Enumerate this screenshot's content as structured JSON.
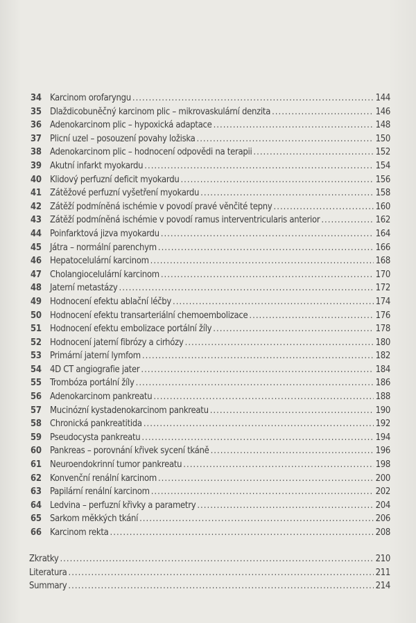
{
  "chapters": [
    {
      "num": "34",
      "title": "Karcinom orofaryngu",
      "page": "144"
    },
    {
      "num": "35",
      "title": "Dlaždicobuněčný karcinom plic – mikrovaskulární denzita",
      "page": "146"
    },
    {
      "num": "36",
      "title": "Adenokarcinom plic – hypoxická adaptace",
      "page": "148"
    },
    {
      "num": "37",
      "title": "Plicní uzel – posouzení povahy ložiska",
      "page": "150"
    },
    {
      "num": "38",
      "title": "Adenokarcinom plic – hodnocení odpovědi na terapii",
      "page": "152"
    },
    {
      "num": "39",
      "title": "Akutní infarkt myokardu",
      "page": "154"
    },
    {
      "num": "40",
      "title": "Klidový perfuzní deficit myokardu",
      "page": "156"
    },
    {
      "num": "41",
      "title": "Zátěžové perfuzní vyšetření myokardu",
      "page": "158"
    },
    {
      "num": "42",
      "title": "Zátěží podmíněná ischémie v povodí pravé věnčité tepny",
      "page": "160"
    },
    {
      "num": "43",
      "title": "Zátěží podmíněná ischémie v povodí ramus interventricularis anterior",
      "page": "162"
    },
    {
      "num": "44",
      "title": "Poinfarktová jizva myokardu",
      "page": "164"
    },
    {
      "num": "45",
      "title": "Játra – normální parenchym",
      "page": "166"
    },
    {
      "num": "46",
      "title": "Hepatocelulární karcinom",
      "page": "168"
    },
    {
      "num": "47",
      "title": "Cholangiocelulární karcinom",
      "page": "170"
    },
    {
      "num": "48",
      "title": "Jaterní metastázy",
      "page": "172"
    },
    {
      "num": "49",
      "title": "Hodnocení efektu ablační léčby",
      "page": "174"
    },
    {
      "num": "50",
      "title": "Hodnocení efektu transarteriální chemoembolizace",
      "page": "176"
    },
    {
      "num": "51",
      "title": "Hodnocení efektu embolizace portální žíly",
      "page": "178"
    },
    {
      "num": "52",
      "title": "Hodnocení jaterní fibrózy a cirhózy",
      "page": "180"
    },
    {
      "num": "53",
      "title": "Primární jaterní lymfom",
      "page": "182"
    },
    {
      "num": "54",
      "title": "4D CT angiografie jater",
      "page": "184"
    },
    {
      "num": "55",
      "title": "Trombóza portální žíly",
      "page": "186"
    },
    {
      "num": "56",
      "title": "Adenokarcinom pankreatu",
      "page": "188"
    },
    {
      "num": "57",
      "title": "Mucinózní kystadenokarcinom pankreatu",
      "page": "190"
    },
    {
      "num": "58",
      "title": "Chronická pankreatitida",
      "page": "192"
    },
    {
      "num": "59",
      "title": "Pseudocysta pankreatu",
      "page": "194"
    },
    {
      "num": "60",
      "title": "Pankreas – porovnání křivek sycení tkáně",
      "page": "196"
    },
    {
      "num": "61",
      "title": "Neuroendokrinní tumor pankreatu",
      "page": "198"
    },
    {
      "num": "62",
      "title": "Konvenční renální karcinom",
      "page": "200"
    },
    {
      "num": "63",
      "title": "Papilární renální karcinom",
      "page": "202"
    },
    {
      "num": "64",
      "title": "Ledvina – perfuzní křivky a parametry",
      "page": "204"
    },
    {
      "num": "65",
      "title": "Sarkom měkkých tkání",
      "page": "206"
    },
    {
      "num": "66",
      "title": "Karcinom rekta",
      "page": "208"
    }
  ],
  "back_matter": [
    {
      "title": "Zkratky",
      "page": "210"
    },
    {
      "title": "Literatura",
      "page": "211"
    },
    {
      "title": "Summary",
      "page": "214"
    }
  ]
}
